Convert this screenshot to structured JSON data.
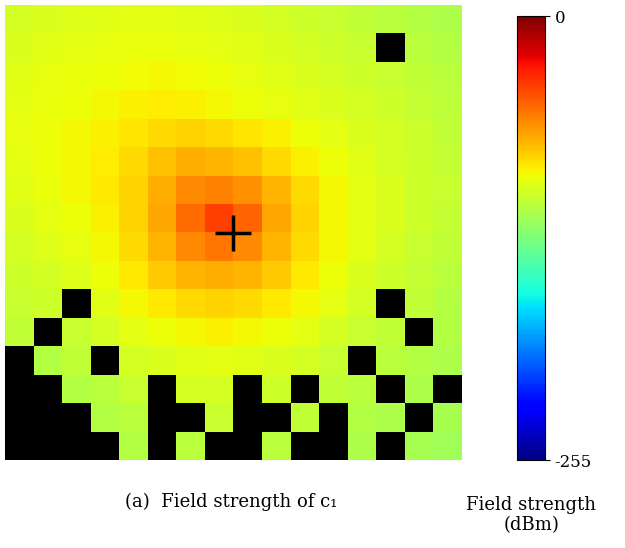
{
  "chart_data": {
    "type": "heatmap",
    "title": "(a)  Field strength of c₁",
    "tick_labels": false,
    "marker": "plus",
    "cells": [
      [
        -100,
        -98,
        -97,
        -96,
        -95,
        -95,
        -96,
        -97,
        -98,
        -100,
        -102,
        -104,
        -106,
        -108,
        -110,
        -112
      ],
      [
        -98,
        -96,
        -95,
        -94,
        -93,
        -93,
        -94,
        -95,
        -96,
        -98,
        -100,
        -102,
        -104,
        null,
        -108,
        -110
      ],
      [
        -96,
        -94,
        -93,
        -92,
        -91,
        -90,
        -91,
        -92,
        -94,
        -96,
        -98,
        -100,
        -102,
        -104,
        -106,
        -108
      ],
      [
        -95,
        -93,
        -92,
        -90,
        -88,
        -87,
        -88,
        -90,
        -92,
        -94,
        -96,
        -98,
        -100,
        -102,
        -105,
        -107
      ],
      [
        -94,
        -92,
        -90,
        -88,
        -85,
        -82,
        -80,
        -82,
        -85,
        -88,
        -92,
        -95,
        -98,
        -100,
        -103,
        -106
      ],
      [
        -95,
        -92,
        -90,
        -87,
        -82,
        -75,
        -70,
        -72,
        -75,
        -82,
        -88,
        -92,
        -96,
        -100,
        -102,
        -105
      ],
      [
        -96,
        -93,
        -90,
        -86,
        -80,
        -70,
        -60,
        -58,
        -62,
        -72,
        -82,
        -90,
        -95,
        -98,
        -102,
        -104
      ],
      [
        -98,
        -95,
        -92,
        -88,
        -80,
        -68,
        -52,
        -40,
        -50,
        -68,
        -80,
        -90,
        -95,
        -98,
        -102,
        -105
      ],
      [
        -100,
        -97,
        -94,
        -90,
        -82,
        -72,
        -60,
        -55,
        -60,
        -72,
        -82,
        -90,
        -95,
        -100,
        -104,
        -106
      ],
      [
        -102,
        -100,
        -97,
        -92,
        -86,
        -78,
        -72,
        -70,
        -72,
        -78,
        -86,
        -92,
        -98,
        -102,
        -105,
        -108
      ],
      [
        -104,
        -102,
        null,
        -96,
        -90,
        -86,
        -82,
        -80,
        -82,
        -86,
        -90,
        -95,
        -100,
        null,
        -106,
        -110
      ],
      [
        -106,
        null,
        -104,
        -100,
        -95,
        -92,
        -90,
        -88,
        -90,
        -92,
        -95,
        -100,
        -104,
        -106,
        null,
        -110
      ],
      [
        null,
        -110,
        -106,
        null,
        -100,
        -98,
        -96,
        -95,
        -96,
        -98,
        -100,
        -104,
        null,
        -108,
        -110,
        -112
      ],
      [
        null,
        null,
        -110,
        -108,
        -104,
        null,
        -100,
        -100,
        null,
        -102,
        null,
        -106,
        -108,
        null,
        -112,
        null
      ],
      [
        null,
        null,
        null,
        -110,
        -108,
        null,
        null,
        -104,
        null,
        null,
        -106,
        null,
        -110,
        -112,
        null,
        -114
      ],
      [
        null,
        null,
        null,
        null,
        -110,
        null,
        -108,
        null,
        null,
        -108,
        null,
        null,
        -112,
        null,
        -114,
        -116
      ]
    ],
    "colorbar": {
      "label": "Field strength\n(dBm)",
      "range": [
        -255,
        0
      ],
      "ticks": [
        -255,
        0
      ]
    }
  }
}
